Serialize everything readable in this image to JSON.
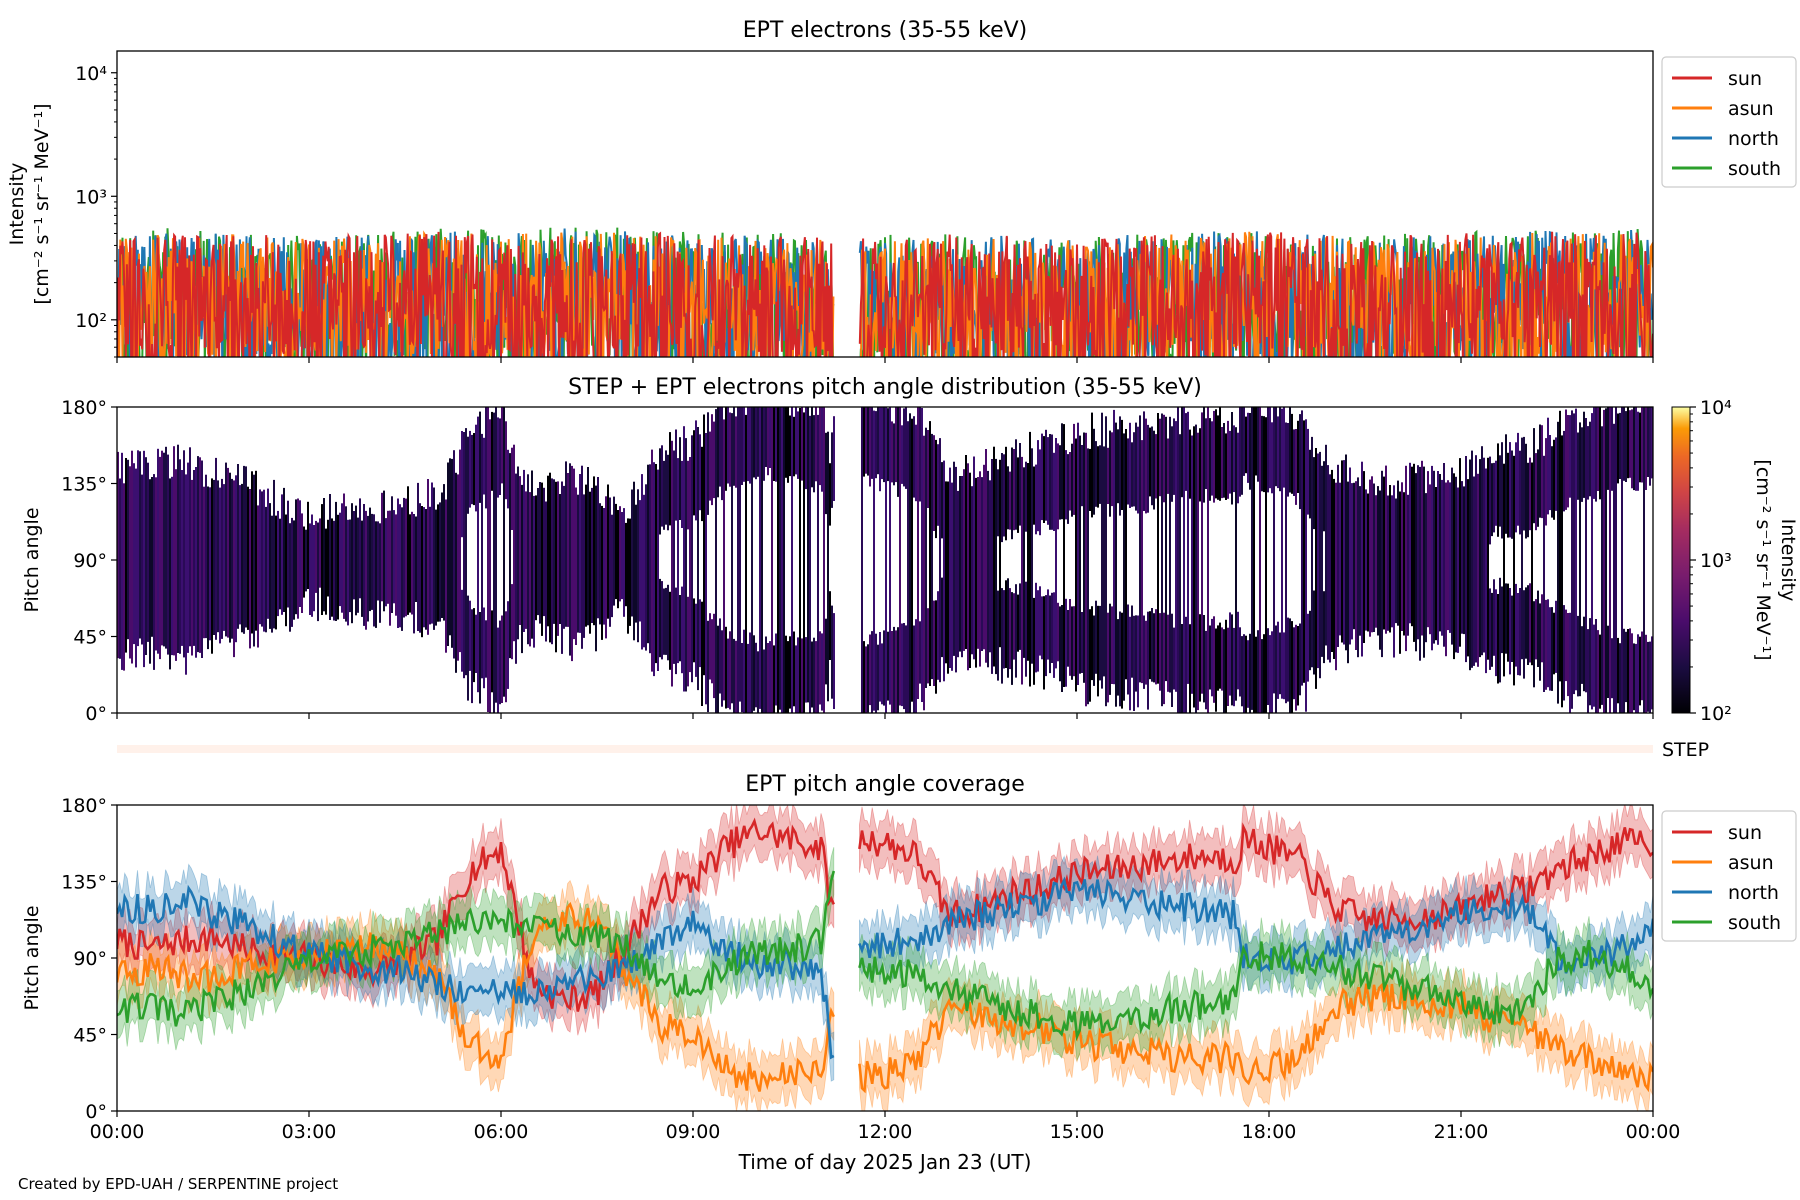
{
  "colors": {
    "sun": "#d62728",
    "asun": "#ff7f0e",
    "north": "#1f77b4",
    "south": "#2ca02c"
  },
  "chart_data": [
    {
      "type": "line",
      "title": "EPT electrons (35-55 keV)",
      "ylabel_line1": "Intensity",
      "ylabel_line2": "[cm⁻² s⁻¹ sr⁻¹ MeV⁻¹]",
      "yscale": "log",
      "ylim": [
        50,
        15000
      ],
      "ytick_labels": [
        "10²",
        "10³",
        "10⁴"
      ],
      "ytick_values": [
        100,
        1000,
        10000
      ],
      "xlim_hours": [
        0,
        24
      ],
      "data_gap_hours": [
        11.2,
        11.6
      ],
      "legend": "top-right outside",
      "series": [
        {
          "name": "south",
          "color_key": "south",
          "x_hours": [
            0,
            1,
            2,
            3,
            4,
            5,
            6,
            7,
            8,
            9,
            10,
            11,
            11.6,
            13,
            14,
            15,
            16,
            17,
            18,
            19,
            20,
            21,
            22,
            23,
            24
          ],
          "values": [
            180,
            200,
            190,
            170,
            175,
            190,
            185,
            200,
            195,
            180,
            175,
            170,
            165,
            180,
            170,
            160,
            175,
            185,
            190,
            175,
            170,
            180,
            185,
            190,
            195
          ]
        },
        {
          "name": "north",
          "color_key": "north",
          "x_hours": [
            0,
            1,
            2,
            3,
            4,
            5,
            6,
            7,
            8,
            9,
            10,
            11,
            11.6,
            13,
            14,
            15,
            16,
            17,
            18,
            19,
            20,
            21,
            22,
            23,
            24
          ],
          "values": [
            170,
            180,
            175,
            165,
            170,
            180,
            175,
            190,
            180,
            170,
            165,
            160,
            160,
            170,
            165,
            160,
            170,
            180,
            185,
            170,
            165,
            175,
            180,
            185,
            190
          ]
        },
        {
          "name": "asun",
          "color_key": "asun",
          "x_hours": [
            0,
            1,
            2,
            3,
            4,
            5,
            6,
            7,
            8,
            9,
            10,
            11,
            11.6,
            13,
            14,
            15,
            16,
            17,
            18,
            19,
            20,
            21,
            22,
            23,
            24
          ],
          "values": [
            160,
            175,
            170,
            160,
            165,
            175,
            170,
            185,
            175,
            165,
            160,
            155,
            155,
            165,
            160,
            155,
            165,
            175,
            180,
            165,
            160,
            170,
            175,
            180,
            185
          ]
        },
        {
          "name": "sun",
          "color_key": "sun",
          "x_hours": [
            0,
            1,
            2,
            3,
            4,
            5,
            6,
            7,
            8,
            9,
            10,
            11,
            11.6,
            13,
            14,
            15,
            16,
            17,
            18,
            19,
            20,
            21,
            22,
            23,
            24
          ],
          "values": [
            165,
            180,
            175,
            165,
            170,
            180,
            175,
            190,
            180,
            170,
            165,
            160,
            160,
            170,
            165,
            160,
            170,
            180,
            185,
            170,
            165,
            175,
            180,
            185,
            190
          ]
        }
      ]
    },
    {
      "type": "heatmap",
      "title": "STEP + EPT electrons pitch angle distribution (35-55 keV)",
      "ylabel": "Pitch angle",
      "ylim": [
        0,
        180
      ],
      "ytick_values": [
        0,
        45,
        90,
        135,
        180
      ],
      "ytick_labels": [
        "0°",
        "45°",
        "90°",
        "135°",
        "180°"
      ],
      "colorbar": {
        "label_line1": "Intensity",
        "label_line2": "[cm⁻² s⁻¹ sr⁻¹ MeV⁻¹]",
        "scale": "log",
        "range": [
          100,
          10000
        ],
        "tick_labels": [
          "10²",
          "10³",
          "10⁴"
        ],
        "colormap": "inferno"
      }
    },
    {
      "type": "band",
      "label": "STEP"
    },
    {
      "type": "line",
      "title": "EPT pitch angle coverage",
      "ylabel": "Pitch angle",
      "ylim": [
        0,
        180
      ],
      "ytick_values": [
        0,
        45,
        90,
        135,
        180
      ],
      "ytick_labels": [
        "0°",
        "45°",
        "90°",
        "135°",
        "180°"
      ],
      "xlabel": "Time of day 2025 Jan 23 (UT)",
      "xtick_labels": [
        "00:00",
        "03:00",
        "06:00",
        "09:00",
        "12:00",
        "15:00",
        "18:00",
        "21:00",
        "00:00"
      ],
      "xtick_hours": [
        0,
        3,
        6,
        9,
        12,
        15,
        18,
        21,
        24
      ],
      "data_gap_hours": [
        11.2,
        11.6
      ],
      "legend": "top-right outside",
      "series": [
        {
          "name": "sun",
          "color_key": "sun",
          "x_hours": [
            0,
            0.5,
            1,
            1.5,
            2,
            2.5,
            3,
            3.5,
            4,
            4.5,
            5,
            5.5,
            6,
            6.5,
            7,
            7.5,
            8,
            8.5,
            9,
            9.5,
            10,
            10.5,
            11,
            11.2,
            11.6,
            12,
            12.5,
            13,
            13.5,
            14,
            14.5,
            15,
            15.5,
            16,
            16.5,
            17,
            17.5,
            17.6,
            18,
            18.5,
            18.7,
            19,
            19.5,
            20,
            20.5,
            21,
            21.5,
            22,
            22.5,
            23,
            23.5,
            24
          ],
          "values": [
            100,
            96,
            100,
            102,
            95,
            92,
            90,
            85,
            82,
            90,
            100,
            140,
            155,
            75,
            65,
            70,
            100,
            130,
            135,
            155,
            165,
            160,
            155,
            115,
            160,
            158,
            150,
            115,
            120,
            128,
            132,
            140,
            142,
            145,
            148,
            150,
            148,
            160,
            155,
            147,
            135,
            120,
            113,
            112,
            115,
            118,
            128,
            130,
            142,
            150,
            158,
            158
          ]
        },
        {
          "name": "asun",
          "color_key": "asun",
          "x_hours": [
            0,
            0.5,
            1,
            1.5,
            2,
            2.5,
            3,
            3.5,
            4,
            4.5,
            5,
            5.5,
            6,
            6.5,
            7,
            7.5,
            8,
            8.5,
            9,
            9.5,
            10,
            10.5,
            11,
            11.2,
            11.6,
            12,
            12.5,
            13,
            13.5,
            14,
            14.5,
            15,
            15.5,
            16,
            16.5,
            17,
            17.5,
            17.6,
            18,
            18.5,
            18.7,
            19,
            19.5,
            20,
            20.5,
            21,
            21.5,
            22,
            22.5,
            23,
            23.5,
            24
          ],
          "values": [
            80,
            84,
            80,
            78,
            85,
            88,
            90,
            95,
            98,
            90,
            80,
            40,
            30,
            105,
            115,
            110,
            80,
            50,
            45,
            25,
            18,
            20,
            25,
            60,
            20,
            22,
            30,
            60,
            55,
            52,
            48,
            40,
            38,
            35,
            32,
            30,
            32,
            20,
            25,
            33,
            45,
            60,
            67,
            68,
            65,
            62,
            52,
            50,
            38,
            30,
            22,
            22
          ]
        },
        {
          "name": "north",
          "color_key": "north",
          "x_hours": [
            0,
            0.5,
            1,
            1.5,
            2,
            2.5,
            3,
            3.5,
            4,
            4.5,
            5,
            5.5,
            6,
            6.5,
            7,
            7.5,
            8,
            8.5,
            9,
            9.5,
            10,
            10.5,
            11,
            11.2,
            11.6,
            12,
            12.5,
            13,
            13.5,
            14,
            14.5,
            15,
            15.5,
            16,
            16.5,
            17,
            17.5,
            17.6,
            18,
            18.5,
            18.7,
            19,
            19.5,
            20,
            20.5,
            21,
            21.5,
            22,
            22.5,
            23,
            23.5,
            24
          ],
          "values": [
            120,
            118,
            125,
            115,
            110,
            100,
            92,
            88,
            85,
            82,
            75,
            70,
            68,
            72,
            75,
            78,
            85,
            100,
            110,
            95,
            88,
            85,
            80,
            30,
            95,
            98,
            100,
            110,
            115,
            120,
            125,
            128,
            130,
            125,
            120,
            118,
            115,
            90,
            88,
            90,
            92,
            95,
            100,
            105,
            110,
            118,
            120,
            122,
            90,
            88,
            95,
            105
          ]
        },
        {
          "name": "south",
          "color_key": "south",
          "x_hours": [
            0,
            0.5,
            1,
            1.5,
            2,
            2.5,
            3,
            3.5,
            4,
            4.5,
            5,
            5.5,
            6,
            6.5,
            7,
            7.5,
            8,
            8.5,
            9,
            9.5,
            10,
            10.5,
            11,
            11.2,
            11.6,
            12,
            12.5,
            13,
            13.5,
            14,
            14.5,
            15,
            15.5,
            16,
            16.5,
            17,
            17.5,
            17.6,
            18,
            18.5,
            18.7,
            19,
            19.5,
            20,
            20.5,
            21,
            21.5,
            22,
            22.5,
            23,
            23.5,
            24
          ],
          "values": [
            60,
            62,
            55,
            65,
            70,
            80,
            88,
            92,
            95,
            98,
            105,
            110,
            112,
            108,
            105,
            102,
            95,
            80,
            70,
            85,
            92,
            95,
            100,
            150,
            85,
            82,
            80,
            70,
            65,
            60,
            55,
            52,
            50,
            55,
            60,
            62,
            65,
            90,
            92,
            90,
            88,
            85,
            80,
            75,
            70,
            62,
            60,
            58,
            90,
            92,
            85,
            75
          ]
        }
      ]
    }
  ],
  "footer": {
    "credit": "Created by EPD-UAH / SERPENTINE project"
  }
}
